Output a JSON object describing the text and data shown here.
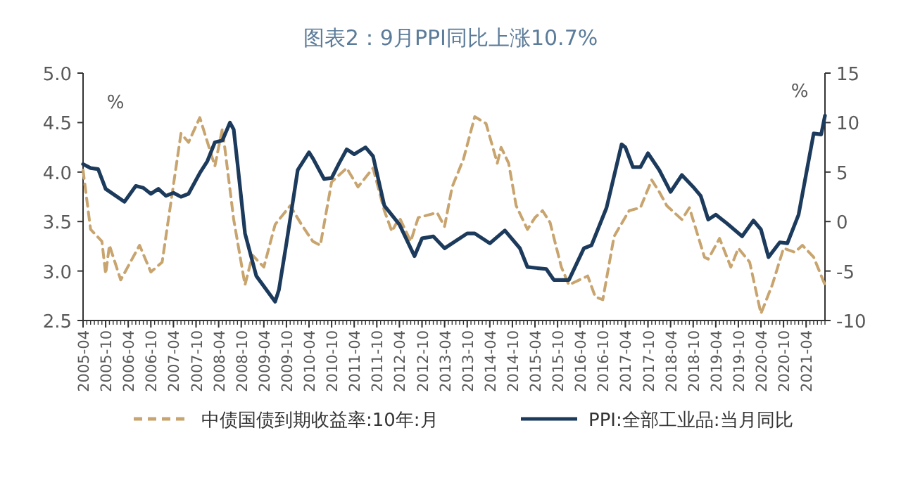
{
  "chart_data": {
    "type": "line",
    "title": "图表2：9月PPI同比上涨10.7%",
    "ylabel": "%",
    "y2label": "%",
    "legend": "bottom",
    "xlim": [
      "2005-04",
      "2021-09"
    ],
    "xticks": [
      "2005-04",
      "2005-10",
      "2006-04",
      "2006-10",
      "2007-04",
      "2007-10",
      "2008-04",
      "2008-10",
      "2009-04",
      "2009-10",
      "2010-04",
      "2010-10",
      "2011-04",
      "2011-10",
      "2012-04",
      "2012-10",
      "2013-04",
      "2013-10",
      "2014-04",
      "2014-10",
      "2015-04",
      "2015-10",
      "2016-04",
      "2016-10",
      "2017-04",
      "2017-10",
      "2018-04",
      "2018-10",
      "2019-04",
      "2019-10",
      "2020-04",
      "2020-10",
      "2021-04"
    ],
    "ylim": [
      2.5,
      5.0
    ],
    "yticks": [
      {
        "value": 2.5,
        "label": "2.5"
      },
      {
        "value": 3.0,
        "label": "3.0"
      },
      {
        "value": 3.5,
        "label": "3.5"
      },
      {
        "value": 4.0,
        "label": "4.0"
      },
      {
        "value": 4.5,
        "label": "4.5"
      },
      {
        "value": 5.0,
        "label": "5.0"
      }
    ],
    "y2lim": [
      -10,
      15
    ],
    "y2ticks": [
      -10,
      -5,
      0,
      5,
      10,
      15
    ],
    "series": [
      {
        "name": "中债国债到期收益率:10年:月",
        "color": "#c8a46e",
        "line_style": "dashed",
        "x": [
          "2005-04",
          "2005-06",
          "2005-09",
          "2005-10",
          "2005-11",
          "2006-02",
          "2006-07",
          "2006-10",
          "2007-01",
          "2007-06",
          "2007-08",
          "2007-11",
          "2008-03",
          "2008-05",
          "2008-08",
          "2008-11",
          "2009-01",
          "2009-04",
          "2009-07",
          "2009-11",
          "2010-02",
          "2010-05",
          "2010-07",
          "2010-10",
          "2011-02",
          "2011-05",
          "2011-09",
          "2011-12",
          "2012-02",
          "2012-04",
          "2012-07",
          "2012-09",
          "2013-02",
          "2013-04",
          "2013-06",
          "2013-09",
          "2013-12",
          "2014-03",
          "2014-06",
          "2014-07",
          "2014-09",
          "2014-11",
          "2015-02",
          "2015-04",
          "2015-06",
          "2015-08",
          "2015-11",
          "2016-01",
          "2016-06",
          "2016-08",
          "2016-10",
          "2017-01",
          "2017-05",
          "2017-08",
          "2017-11",
          "2018-01",
          "2018-03",
          "2018-07",
          "2018-09",
          "2019-01",
          "2019-02",
          "2019-05",
          "2019-08",
          "2019-10",
          "2020-01",
          "2020-04",
          "2020-07",
          "2020-10",
          "2021-01",
          "2021-03",
          "2021-06",
          "2021-09"
        ],
        "values": [
          4.02,
          3.42,
          3.3,
          2.97,
          3.26,
          2.91,
          3.26,
          2.99,
          3.09,
          4.39,
          4.3,
          4.55,
          4.06,
          4.44,
          3.52,
          2.86,
          3.16,
          3.04,
          3.47,
          3.66,
          3.47,
          3.3,
          3.26,
          3.9,
          4.04,
          3.85,
          4.04,
          3.61,
          3.4,
          3.54,
          3.3,
          3.54,
          3.59,
          3.45,
          3.85,
          4.13,
          4.56,
          4.49,
          4.09,
          4.25,
          4.09,
          3.66,
          3.42,
          3.54,
          3.61,
          3.49,
          3.04,
          2.86,
          2.95,
          2.74,
          2.71,
          3.35,
          3.61,
          3.64,
          3.92,
          3.8,
          3.66,
          3.52,
          3.64,
          3.14,
          3.12,
          3.33,
          3.04,
          3.23,
          3.09,
          2.57,
          2.86,
          3.23,
          3.19,
          3.26,
          3.14,
          2.86
        ]
      },
      {
        "name": "PPI:全部工业品:当月同比",
        "color": "#1c3a5c",
        "line_style": "solid",
        "axis": "y2",
        "x": [
          "2005-04",
          "2005-06",
          "2005-08",
          "2005-10",
          "2006-03",
          "2006-06",
          "2006-08",
          "2006-10",
          "2006-12",
          "2007-02",
          "2007-04",
          "2007-06",
          "2007-08",
          "2007-11",
          "2008-01",
          "2008-03",
          "2008-05",
          "2008-07",
          "2008-08",
          "2008-09",
          "2008-11",
          "2009-02",
          "2009-07",
          "2009-08",
          "2009-10",
          "2010-01",
          "2010-04",
          "2010-05",
          "2010-08",
          "2010-10",
          "2010-12",
          "2011-02",
          "2011-04",
          "2011-07",
          "2011-09",
          "2011-12",
          "2012-04",
          "2012-08",
          "2012-10",
          "2013-01",
          "2013-04",
          "2013-10",
          "2013-12",
          "2014-04",
          "2014-08",
          "2014-12",
          "2015-02",
          "2015-07",
          "2015-09",
          "2016-01",
          "2016-05",
          "2016-07",
          "2016-11",
          "2017-03",
          "2017-04",
          "2017-06",
          "2017-08",
          "2017-10",
          "2018-01",
          "2018-04",
          "2018-07",
          "2018-10",
          "2018-12",
          "2019-02",
          "2019-04",
          "2019-07",
          "2019-11",
          "2020-02",
          "2020-04",
          "2020-06",
          "2020-09",
          "2020-11",
          "2021-02",
          "2021-06",
          "2021-08",
          "2021-09"
        ],
        "values": [
          5.8,
          5.4,
          5.3,
          3.3,
          2.0,
          3.6,
          3.4,
          2.8,
          3.3,
          2.6,
          2.9,
          2.5,
          2.8,
          4.9,
          6.1,
          8.0,
          8.2,
          10.0,
          9.3,
          5.9,
          -1.2,
          -5.5,
          -8.1,
          -6.9,
          -2.2,
          5.2,
          7.0,
          6.4,
          4.3,
          4.4,
          5.9,
          7.3,
          6.8,
          7.5,
          6.6,
          1.6,
          -0.3,
          -3.5,
          -1.7,
          -1.5,
          -2.7,
          -1.2,
          -1.2,
          -2.2,
          -0.9,
          -2.7,
          -4.6,
          -4.8,
          -5.9,
          -5.9,
          -2.7,
          -2.4,
          1.4,
          7.8,
          7.5,
          5.5,
          5.5,
          6.9,
          5.2,
          3.0,
          4.7,
          3.5,
          2.6,
          0.2,
          0.7,
          -0.2,
          -1.5,
          0.1,
          -0.8,
          -3.6,
          -2.1,
          -2.2,
          0.7,
          8.9,
          8.8,
          10.7
        ]
      }
    ]
  }
}
